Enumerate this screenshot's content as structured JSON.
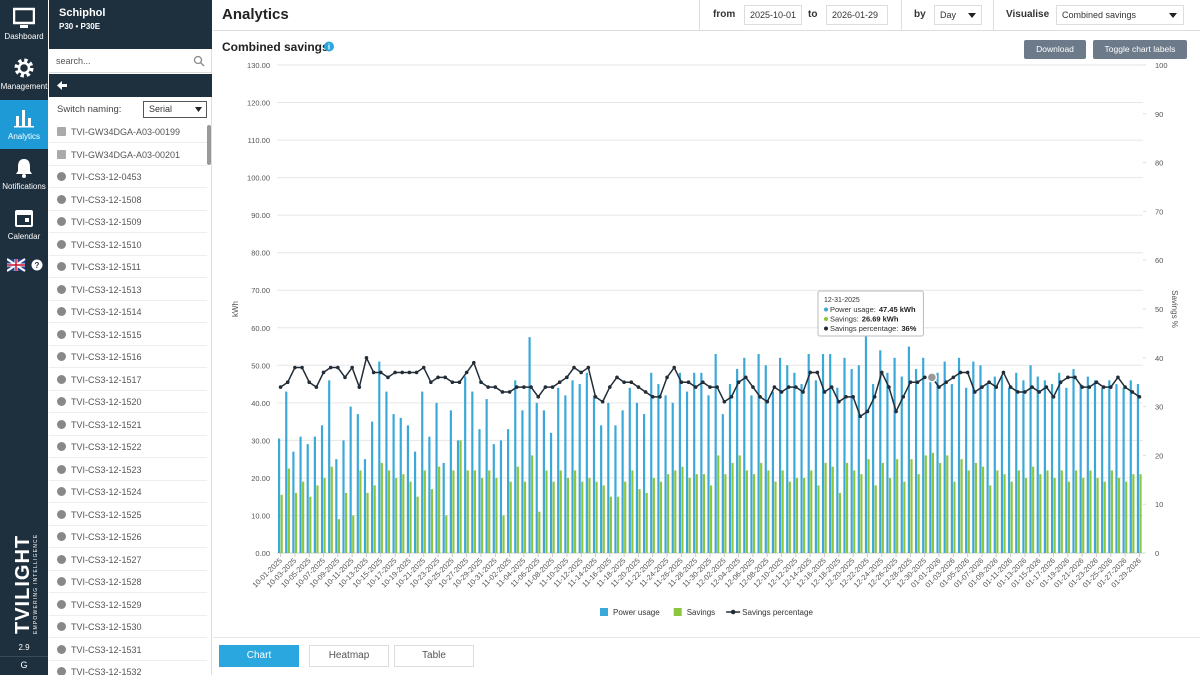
{
  "sidebar": {
    "nav": [
      "Dashboard",
      "Management",
      "Analytics",
      "Notifications",
      "Calendar"
    ],
    "version": "2.9",
    "footer": "G",
    "logo": "TVILIGHT",
    "tagline": "EMPOWERING INTELLIGENCE"
  },
  "panel": {
    "title": "Schiphol",
    "subtitle": "P30 • P30E",
    "search_placeholder": "search...",
    "naming_label": "Switch naming:",
    "naming_value": "Serial",
    "devices": [
      "TVI-GW34DGA-A03-00199",
      "TVI-GW34DGA-A03-00201",
      "TVI-CS3-12-0453",
      "TVI-CS3-12-1508",
      "TVI-CS3-12-1509",
      "TVI-CS3-12-1510",
      "TVI-CS3-12-1511",
      "TVI-CS3-12-1513",
      "TVI-CS3-12-1514",
      "TVI-CS3-12-1515",
      "TVI-CS3-12-1516",
      "TVI-CS3-12-1517",
      "TVI-CS3-12-1520",
      "TVI-CS3-12-1521",
      "TVI-CS3-12-1522",
      "TVI-CS3-12-1523",
      "TVI-CS3-12-1524",
      "TVI-CS3-12-1525",
      "TVI-CS3-12-1526",
      "TVI-CS3-12-1527",
      "TVI-CS3-12-1528",
      "TVI-CS3-12-1529",
      "TVI-CS3-12-1530",
      "TVI-CS3-12-1531",
      "TVI-CS3-12-1532"
    ]
  },
  "header": {
    "title": "Analytics",
    "from_label": "from",
    "from_value": "2025-10-01",
    "to_label": "to",
    "to_value": "2026-01-29",
    "by_label": "by",
    "by_value": "Day",
    "visualise_label": "Visualise",
    "visualise_value": "Combined savings"
  },
  "card": {
    "download": "Download",
    "toggle": "Toggle chart labels",
    "tabs": [
      "Chart",
      "Heatmap",
      "Table"
    ]
  },
  "chart_data": {
    "type": "bar-line",
    "title": "Combined savings",
    "y_label": "kWh",
    "y2_label": "Savings %",
    "categories": [
      "10-01-2025",
      null,
      "10-03-2025",
      null,
      "10-05-2025",
      null,
      "10-07-2025",
      null,
      "10-09-2025",
      null,
      "10-11-2025",
      null,
      "10-13-2025",
      null,
      "10-15-2025",
      null,
      "10-17-2025",
      null,
      "10-19-2025",
      null,
      "10-21-2025",
      null,
      "10-23-2025",
      null,
      "10-25-2025",
      null,
      "10-27-2025",
      null,
      "10-29-2025",
      null,
      "10-31-2025",
      null,
      "11-02-2025",
      null,
      "11-04-2025",
      null,
      "11-06-2025",
      null,
      "11-08-2025",
      null,
      "11-10-2025",
      null,
      "11-12-2025",
      null,
      "11-14-2025",
      null,
      "11-16-2025",
      null,
      "11-18-2025",
      null,
      "11-20-2025",
      null,
      "11-22-2025",
      null,
      "11-24-2025",
      null,
      "11-26-2025",
      null,
      "11-28-2025",
      null,
      "11-30-2025",
      null,
      "12-02-2025",
      null,
      "12-04-2025",
      null,
      "12-06-2025",
      null,
      "12-08-2025",
      null,
      "12-10-2025",
      null,
      "12-12-2025",
      null,
      "12-14-2025",
      null,
      "12-16-2025",
      null,
      "12-18-2025",
      null,
      "12-20-2025",
      null,
      "12-22-2025",
      null,
      "12-24-2025",
      null,
      "12-26-2025",
      null,
      "12-28-2025",
      null,
      "12-30-2025",
      null,
      "01-01-2026",
      null,
      "01-03-2026",
      null,
      "01-05-2026",
      null,
      "01-07-2026",
      null,
      "01-09-2026",
      null,
      "01-11-2026",
      null,
      "01-13-2026",
      null,
      "01-15-2026",
      null,
      "01-17-2026",
      null,
      "01-19-2026",
      null,
      "01-21-2026",
      null,
      "01-23-2026",
      null,
      "01-25-2026",
      null,
      "01-27-2026",
      null,
      "01-29-2026"
    ],
    "series": [
      {
        "name": "Power usage",
        "color": "#3aa8d8",
        "kind": "bar",
        "values": [
          30.5,
          43,
          27,
          31,
          29,
          31,
          34,
          46,
          25,
          30,
          39,
          37,
          25,
          35,
          51,
          43,
          37,
          36,
          34,
          27,
          43,
          31,
          40,
          24,
          38,
          30,
          47,
          43,
          33,
          41,
          29,
          30,
          33,
          46,
          38,
          57.5,
          40,
          38,
          32,
          44,
          42,
          46,
          45,
          48,
          42,
          34,
          40,
          34,
          38,
          44,
          40,
          37,
          48,
          45,
          42,
          40,
          48,
          43,
          48,
          48,
          42,
          53,
          37,
          45,
          49,
          52,
          42,
          53,
          50,
          43,
          52,
          50,
          48,
          45,
          53,
          46,
          53,
          53,
          44,
          52,
          49,
          50,
          64,
          45,
          54,
          48,
          52,
          47,
          55,
          49,
          52,
          47.45,
          48,
          51,
          45,
          52,
          44,
          51,
          50,
          45,
          47,
          47,
          44,
          48,
          46,
          50,
          47,
          46,
          45,
          48,
          44,
          49,
          45,
          47,
          46,
          44,
          46,
          45,
          44,
          46,
          45
        ]
      },
      {
        "name": "Savings",
        "color": "#8cc63f",
        "kind": "bar",
        "values": [
          15.5,
          22.5,
          16,
          19,
          15,
          18,
          20,
          23,
          9,
          16,
          10,
          22,
          16,
          18,
          24,
          22,
          20,
          21,
          19,
          15,
          22,
          17,
          23,
          10,
          22,
          30,
          22,
          22,
          20,
          22,
          20,
          10,
          19,
          23,
          19,
          26,
          11,
          22,
          19,
          22,
          20,
          22,
          19,
          20,
          19,
          18,
          15,
          15,
          19,
          22,
          17,
          16,
          20,
          19,
          21,
          22,
          23,
          20,
          21,
          21,
          18,
          26,
          21,
          24,
          26,
          22,
          21,
          24,
          22,
          19,
          22,
          19,
          20,
          20,
          22,
          18,
          24,
          23,
          16,
          24,
          22,
          21,
          25,
          18,
          24,
          20,
          25,
          19,
          25,
          21,
          26,
          26.69,
          24,
          26,
          19,
          25,
          22,
          24,
          23,
          18,
          22,
          21,
          19,
          22,
          20,
          23,
          21,
          22,
          20,
          22,
          19,
          22,
          20,
          22,
          20,
          19,
          22,
          20,
          19,
          21,
          21
        ]
      },
      {
        "name": "Savings percentage",
        "color": "#222d37",
        "kind": "line",
        "axis": "y2",
        "values": [
          34,
          35,
          38,
          38,
          35,
          34,
          37,
          38,
          38,
          36,
          38,
          34,
          40,
          37,
          37,
          36,
          37,
          37,
          37,
          37,
          38,
          35,
          36,
          36,
          35,
          35,
          37,
          39,
          35,
          34,
          34,
          33,
          33,
          34,
          34,
          34,
          32,
          34,
          34,
          35,
          36,
          38,
          37,
          38,
          32,
          31,
          34,
          36,
          35,
          35,
          34,
          33,
          32,
          32,
          36,
          38,
          35,
          35,
          34,
          35,
          34,
          34,
          31,
          32,
          35,
          36,
          34,
          32,
          31,
          34,
          33,
          34,
          34,
          33,
          37,
          37,
          33,
          34,
          31,
          32,
          32,
          28,
          29,
          32,
          37,
          34,
          29,
          32,
          35,
          35,
          36,
          36,
          34,
          35,
          36,
          37,
          37,
          33,
          34,
          35,
          34,
          37,
          34,
          33,
          33,
          34,
          33,
          34,
          32,
          35,
          36,
          36,
          34,
          34,
          35,
          34,
          34,
          36,
          34,
          33,
          32
        ]
      }
    ],
    "ylim": [
      0,
      130
    ],
    "yticks": [
      {
        "value": 0,
        "label": "0.00"
      },
      {
        "value": 10,
        "label": "10.00"
      },
      {
        "value": 20,
        "label": "20.00"
      },
      {
        "value": 30,
        "label": "30.00"
      },
      {
        "value": 40,
        "label": "40.00"
      },
      {
        "value": 50,
        "label": "50.00"
      },
      {
        "value": 60,
        "label": "60.00"
      },
      {
        "value": 70,
        "label": "70.00"
      },
      {
        "value": 80,
        "label": "80.00"
      },
      {
        "value": 90,
        "label": "90.00"
      },
      {
        "value": 100,
        "label": "100.00"
      },
      {
        "value": 110,
        "label": "110.00"
      },
      {
        "value": 120,
        "label": "120.00"
      },
      {
        "value": 130,
        "label": "130.00"
      }
    ],
    "y2lim": [
      0,
      100
    ],
    "y2ticks": [
      0,
      10,
      20,
      30,
      40,
      50,
      60,
      70,
      80,
      90,
      100
    ],
    "grid": true,
    "legend": "bottom",
    "tooltip": {
      "index": 91,
      "date": "12-31-2025",
      "items": [
        {
          "label": "Power usage:",
          "value": "47.45 kWh"
        },
        {
          "label": "Savings:",
          "value": "26.69 kWh"
        },
        {
          "label": "Savings percentage:",
          "value": "36%"
        }
      ]
    }
  }
}
